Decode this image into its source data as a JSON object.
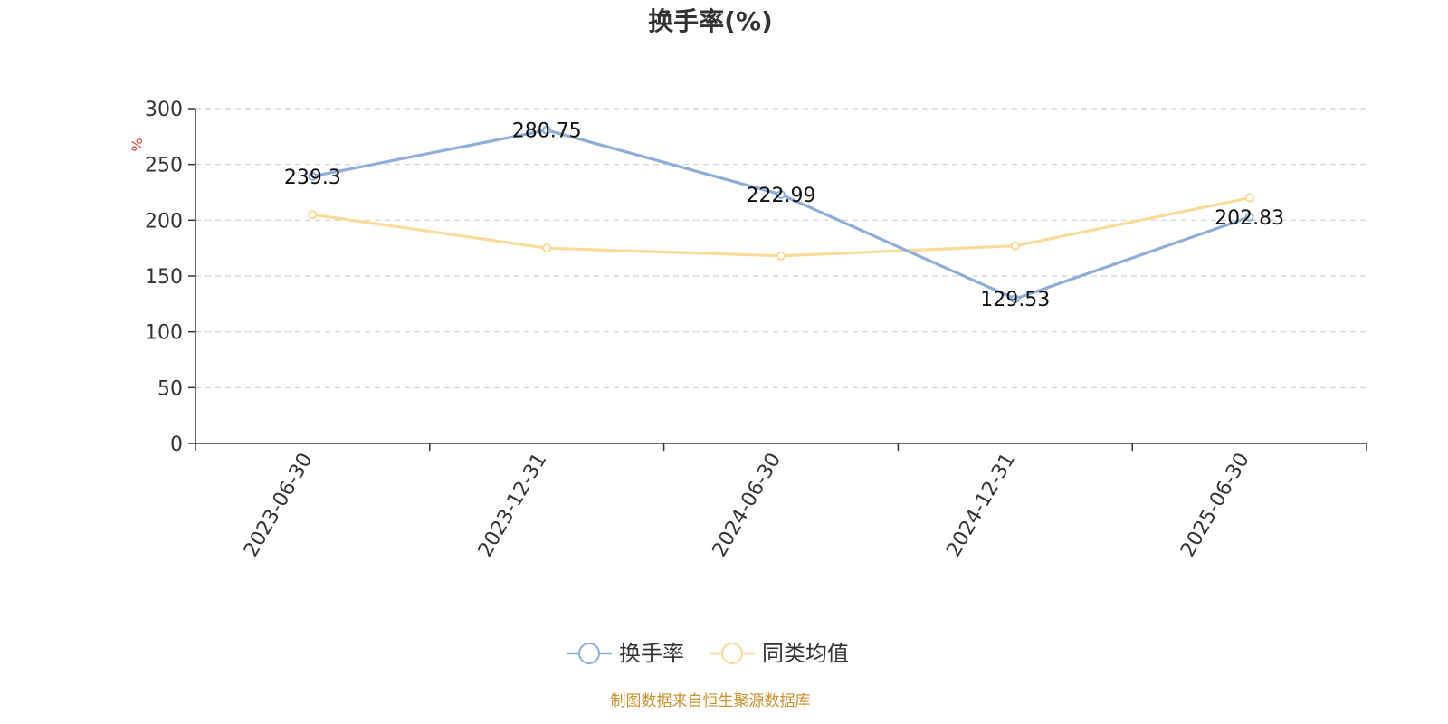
{
  "chart_data": {
    "type": "line",
    "title": "换手率(%)",
    "unit_label": "%",
    "categories": [
      "2023-06-30",
      "2023-12-31",
      "2024-06-30",
      "2024-12-31",
      "2025-06-30"
    ],
    "ylim": [
      0,
      300
    ],
    "y_ticks": [
      0,
      50,
      100,
      150,
      200,
      250,
      300
    ],
    "grid": true,
    "legend_position": "bottom-center",
    "series": [
      {
        "name": "换手率",
        "color": "#8eadd8",
        "values": [
          239.3,
          280.75,
          222.99,
          129.53,
          202.83
        ],
        "data_labels": [
          "239.3",
          "280.75",
          "222.99",
          "129.53",
          "202.83"
        ]
      },
      {
        "name": "同类均值",
        "color": "#fbd998",
        "values": [
          205,
          175,
          168,
          177,
          220
        ]
      }
    ],
    "source_note": "制图数据来自恒生聚源数据库"
  }
}
